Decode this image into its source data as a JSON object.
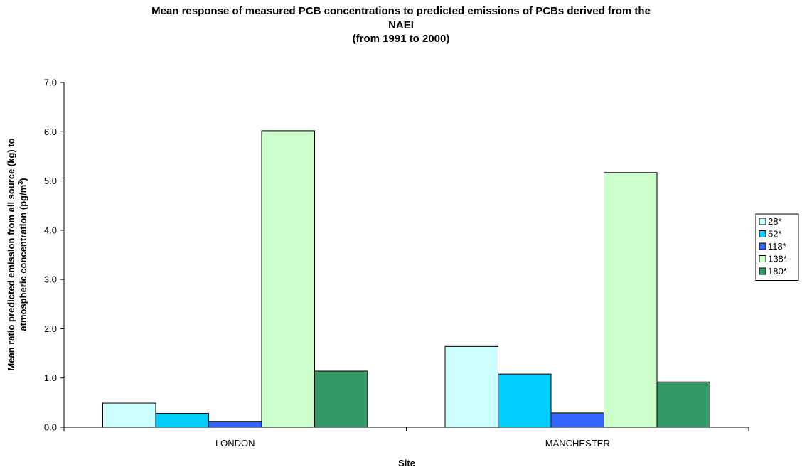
{
  "chart_data": {
    "type": "bar",
    "title": [
      "Mean response of measured PCB concentrations to predicted emissions of PCBs derived from the",
      "NAEI",
      "(from 1991 to 2000)"
    ],
    "xlabel": "Site",
    "ylabel": {
      "line1": "Mean ratio predicted emission from all source (kg)  to",
      "line2_prefix": "atmospheric concentration  (pg/m",
      "line2_sup": "3",
      "line2_suffix": ")"
    },
    "categories": [
      "LONDON",
      "MANCHESTER"
    ],
    "series": [
      {
        "name": "28*",
        "color": "#ccffff",
        "values": [
          0.49,
          1.64
        ]
      },
      {
        "name": "52*",
        "color": "#00ccff",
        "values": [
          0.28,
          1.08
        ]
      },
      {
        "name": "118*",
        "color": "#3366ff",
        "values": [
          0.12,
          0.29
        ]
      },
      {
        "name": "138*",
        "color": "#ccffcc",
        "values": [
          6.02,
          5.17
        ]
      },
      {
        "name": "180*",
        "color": "#339966",
        "values": [
          1.14,
          0.92
        ]
      }
    ],
    "ylim": [
      0,
      7
    ],
    "yticks": [
      "0.0",
      "1.0",
      "2.0",
      "3.0",
      "4.0",
      "5.0",
      "6.0",
      "7.0"
    ],
    "grid": false,
    "legend_position": "right"
  }
}
